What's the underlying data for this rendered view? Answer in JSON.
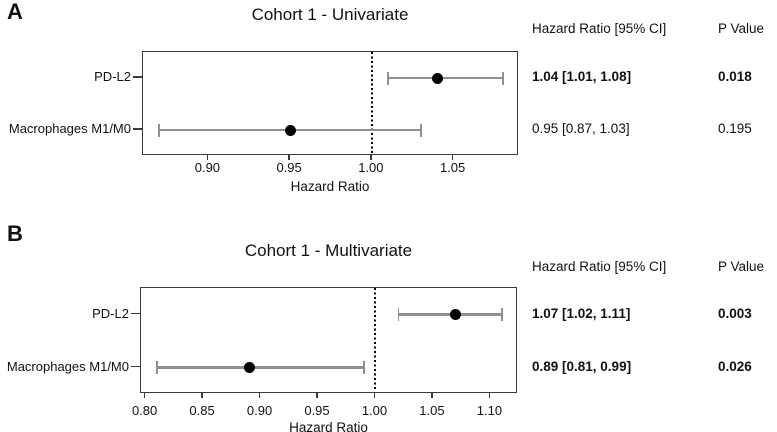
{
  "colors": {
    "background": "#ffffff",
    "text": "#111111",
    "ci_bar": "#8f8f8f",
    "marker": "#000000",
    "axis": "#3a3a3a",
    "refline": "#000000"
  },
  "chart_data": [
    {
      "type": "forest",
      "panel_label": "A",
      "title": "Cohort 1 - Univariate",
      "xlabel": "Hazard Ratio",
      "xlim": [
        0.86,
        1.09
      ],
      "xtick_values": [
        0.9,
        0.95,
        1.0,
        1.05
      ],
      "xtick_labels": [
        "0.90",
        "0.95",
        "1.00",
        "1.05"
      ],
      "refline": 1.0,
      "grid": false,
      "legend_position": "none",
      "table_header": {
        "hr": "Hazard Ratio [95% CI]",
        "p": "P Value"
      },
      "rows": [
        {
          "label": "PD-L2",
          "hr": 1.04,
          "ci_low": 1.01,
          "ci_high": 1.08,
          "hr_ci_text": "1.04 [1.01, 1.08]",
          "p_value": "0.018",
          "bold": true
        },
        {
          "label": "Macrophages M1/M0",
          "hr": 0.95,
          "ci_low": 0.87,
          "ci_high": 1.03,
          "hr_ci_text": "0.95 [0.87, 1.03]",
          "p_value": "0.195",
          "bold": false
        }
      ]
    },
    {
      "type": "forest",
      "panel_label": "B",
      "title": "Cohort 1 - Multivariate",
      "xlabel": "Hazard Ratio",
      "xlim": [
        0.796,
        1.124
      ],
      "xtick_values": [
        0.8,
        0.85,
        0.9,
        0.95,
        1.0,
        1.05,
        1.1
      ],
      "xtick_labels": [
        "0.80",
        "0.85",
        "0.90",
        "0.95",
        "1.00",
        "1.05",
        "1.10"
      ],
      "refline": 1.0,
      "grid": false,
      "legend_position": "none",
      "table_header": {
        "hr": "Hazard Ratio [95% CI]",
        "p": "P Value"
      },
      "rows": [
        {
          "label": "PD-L2",
          "hr": 1.07,
          "ci_low": 1.02,
          "ci_high": 1.11,
          "hr_ci_text": "1.07 [1.02, 1.11]",
          "p_value": "0.003",
          "bold": true
        },
        {
          "label": "Macrophages M1/M0",
          "hr": 0.89,
          "ci_low": 0.81,
          "ci_high": 0.99,
          "hr_ci_text": "0.89 [0.81, 0.99]",
          "p_value": "0.026",
          "bold": true
        }
      ]
    }
  ]
}
